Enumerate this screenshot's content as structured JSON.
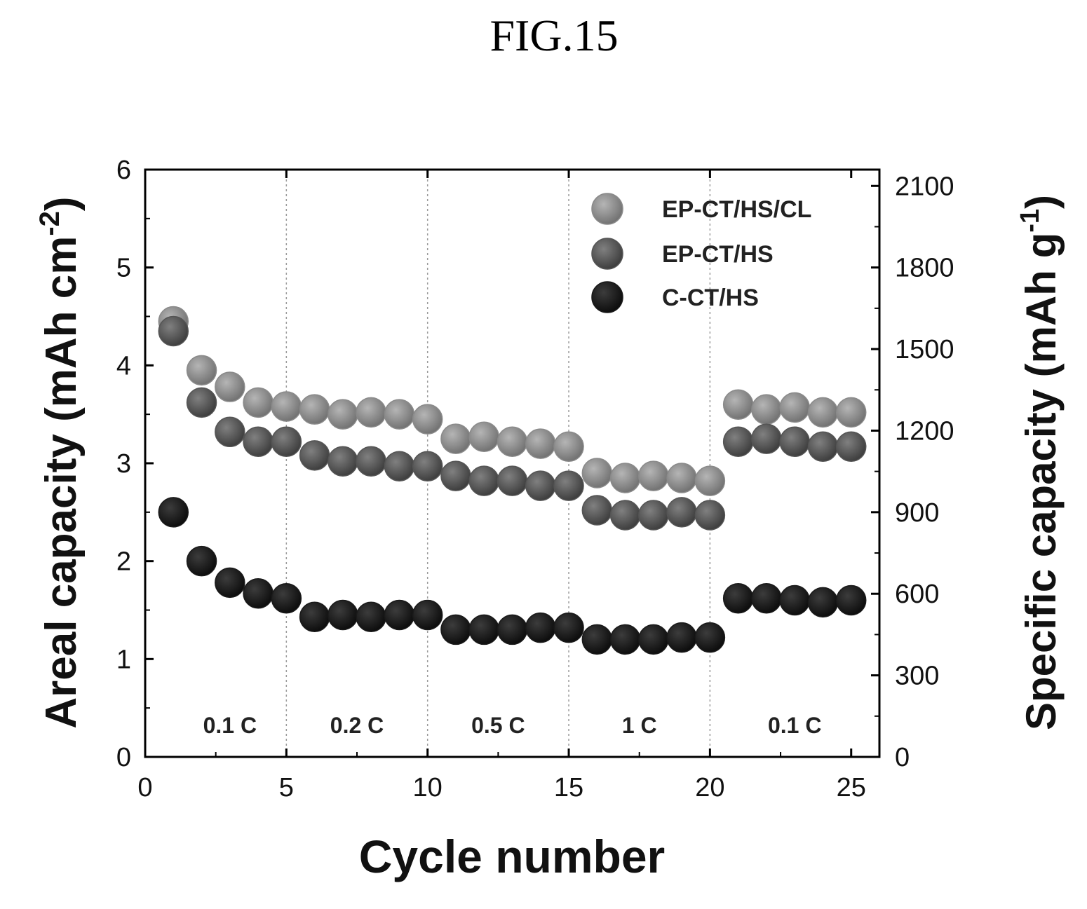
{
  "figure_label": "FIG.15",
  "chart_data": {
    "type": "scatter",
    "title": "",
    "xlabel": "Cycle number",
    "ylabel_left": "Areal capacity (mAh cm",
    "ylabel_left_sup": "-2",
    "ylabel_left_close": ")",
    "ylabel_right": "Specific capacity (mAh g",
    "ylabel_right_sup": "-1",
    "ylabel_right_close": ")",
    "xlim": [
      0,
      26
    ],
    "ylim_left": [
      0,
      6
    ],
    "ylim_right": [
      0,
      2160
    ],
    "x_ticks": [
      0,
      5,
      10,
      15,
      20,
      25
    ],
    "x_tick_labels": [
      "0",
      "5",
      "10",
      "15",
      "20",
      "25"
    ],
    "y_left_ticks": [
      0,
      1,
      2,
      3,
      4,
      5,
      6
    ],
    "y_left_tick_labels": [
      "0",
      "1",
      "2",
      "3",
      "4",
      "5",
      "6"
    ],
    "y_right_ticks": [
      0,
      300,
      600,
      900,
      1200,
      1500,
      1800,
      2100
    ],
    "y_right_tick_labels": [
      "0",
      "300",
      "600",
      "900",
      "1200",
      "1500",
      "1800",
      "2100"
    ],
    "rate_regions": [
      {
        "label": "0.1 C",
        "x": 3
      },
      {
        "label": "0.2 C",
        "x": 7.5
      },
      {
        "label": "0.5 C",
        "x": 12.5
      },
      {
        "label": "1 C",
        "x": 17.5
      },
      {
        "label": "0.1 C",
        "x": 23
      }
    ],
    "rate_boundaries": [
      5,
      10,
      15,
      20
    ],
    "legend_position": "top-right",
    "x": [
      1,
      2,
      3,
      4,
      5,
      6,
      7,
      8,
      9,
      10,
      11,
      12,
      13,
      14,
      15,
      16,
      17,
      18,
      19,
      20,
      21,
      22,
      23,
      24,
      25
    ],
    "series": [
      {
        "name": "EP-CT/HS/CL",
        "color": "#8a8a8a",
        "values": [
          4.45,
          3.95,
          3.78,
          3.62,
          3.58,
          3.55,
          3.5,
          3.52,
          3.5,
          3.45,
          3.25,
          3.27,
          3.22,
          3.2,
          3.17,
          2.9,
          2.85,
          2.87,
          2.85,
          2.82,
          3.6,
          3.55,
          3.57,
          3.52,
          3.52
        ]
      },
      {
        "name": "EP-CT/HS",
        "color": "#555555",
        "values": [
          4.35,
          3.62,
          3.32,
          3.22,
          3.22,
          3.08,
          3.02,
          3.02,
          2.97,
          2.97,
          2.87,
          2.82,
          2.82,
          2.77,
          2.77,
          2.52,
          2.47,
          2.47,
          2.5,
          2.47,
          3.22,
          3.25,
          3.22,
          3.17,
          3.17
        ]
      },
      {
        "name": "C-CT/HS",
        "color": "#1a1a1a",
        "values": [
          2.5,
          2.0,
          1.78,
          1.67,
          1.62,
          1.43,
          1.45,
          1.43,
          1.45,
          1.45,
          1.3,
          1.3,
          1.3,
          1.32,
          1.32,
          1.2,
          1.2,
          1.2,
          1.22,
          1.22,
          1.62,
          1.62,
          1.6,
          1.58,
          1.6
        ]
      }
    ]
  }
}
